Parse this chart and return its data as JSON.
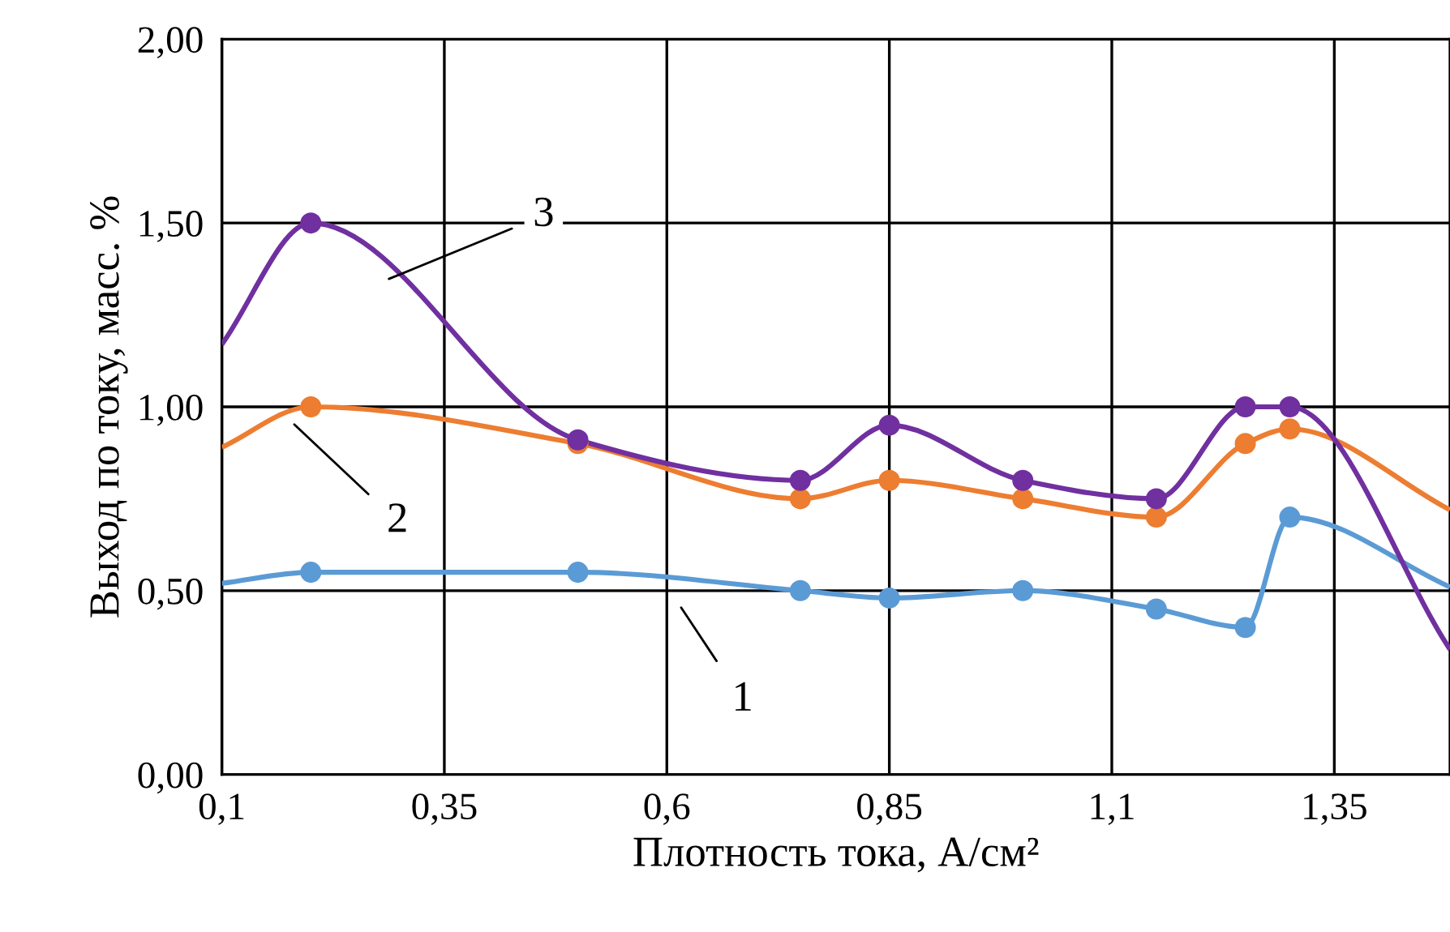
{
  "chart_data": {
    "type": "line",
    "xlabel": "Плотность тока, А/см²",
    "ylabel": "Выход по току, масс. %",
    "xlim": [
      0.1,
      1.48
    ],
    "ylim": [
      0,
      2
    ],
    "xticks": [
      {
        "value": 0.1,
        "label": "0,1"
      },
      {
        "value": 0.35,
        "label": "0,35"
      },
      {
        "value": 0.6,
        "label": "0,6"
      },
      {
        "value": 0.85,
        "label": "0,85"
      },
      {
        "value": 1.1,
        "label": "1,1"
      },
      {
        "value": 1.35,
        "label": "1,35"
      }
    ],
    "yticks": [
      {
        "value": 0,
        "label": "0,00"
      },
      {
        "value": 0.5,
        "label": "0,50"
      },
      {
        "value": 1.0,
        "label": "1,00"
      },
      {
        "value": 1.5,
        "label": "1,50"
      },
      {
        "value": 2.0,
        "label": "2,00"
      }
    ],
    "grid": true,
    "legend": false,
    "series": [
      {
        "marker": "none",
        "color": "#5b9bd5",
        "x": [
          0.1,
          0.2,
          0.5,
          0.75,
          0.85,
          1.0,
          1.15,
          1.25,
          1.3,
          1.48
        ],
        "values": [
          0.52,
          0.55,
          0.55,
          0.5,
          0.48,
          0.5,
          0.45,
          0.4,
          0.7,
          0.51
        ]
      },
      {
        "marker": "none",
        "color": "#ed7d31",
        "x": [
          0.1,
          0.2,
          0.5,
          0.75,
          0.85,
          1.0,
          1.15,
          1.25,
          1.3,
          1.48
        ],
        "values": [
          0.89,
          1.0,
          0.9,
          0.75,
          0.8,
          0.75,
          0.7,
          0.9,
          0.94,
          0.72
        ]
      },
      {
        "marker": "none",
        "color": "#7030a0",
        "x": [
          0.1,
          0.2,
          0.5,
          0.75,
          0.85,
          1.0,
          1.15,
          1.25,
          1.3,
          1.48
        ],
        "values": [
          1.17,
          1.5,
          0.91,
          0.8,
          0.95,
          0.8,
          0.75,
          1.0,
          1.0,
          0.34
        ]
      },
      {
        "type": "scatter",
        "marker": "circle",
        "color": "#5b9bd5",
        "x": [
          0.2,
          0.5,
          0.75,
          0.85,
          1.0,
          1.15,
          1.25,
          1.3
        ],
        "values": [
          0.55,
          0.55,
          0.5,
          0.48,
          0.5,
          0.45,
          0.4,
          0.7
        ]
      },
      {
        "type": "scatter",
        "marker": "circle",
        "color": "#ed7d31",
        "x": [
          0.2,
          0.5,
          0.75,
          0.85,
          1.0,
          1.15,
          1.25,
          1.3
        ],
        "values": [
          1.0,
          0.9,
          0.75,
          0.8,
          0.75,
          0.7,
          0.9,
          0.94
        ]
      },
      {
        "type": "scatter",
        "marker": "circle",
        "color": "#7030a0",
        "x": [
          0.2,
          0.5,
          0.75,
          0.85,
          1.0,
          1.15,
          1.25,
          1.3
        ],
        "values": [
          1.5,
          0.91,
          0.8,
          0.95,
          0.8,
          0.75,
          1.0,
          1.0
        ]
      }
    ],
    "annotations": [
      "3",
      "2",
      "1"
    ]
  }
}
